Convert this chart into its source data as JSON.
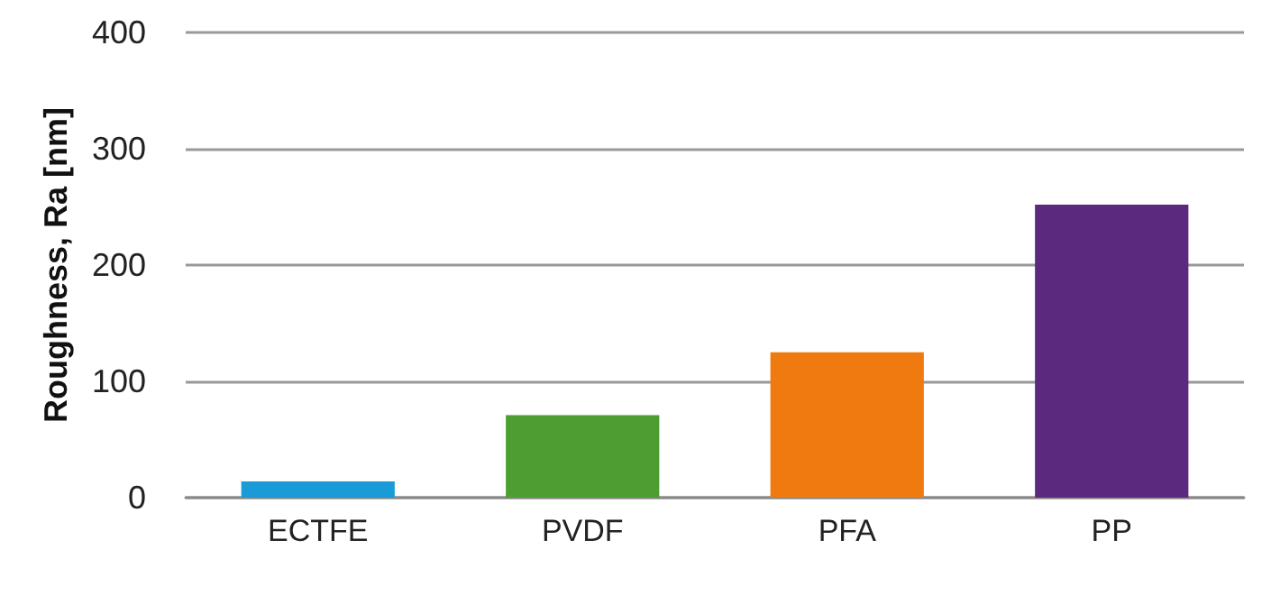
{
  "chart_data": {
    "type": "bar",
    "ylabel": "Roughness, Ra [nm]",
    "categories": [
      "ECTFE",
      "PVDF",
      "PFA",
      "PP"
    ],
    "values": [
      14,
      71,
      125,
      252
    ],
    "colors": [
      "#1a9bd8",
      "#4b9e2f",
      "#ef7b10",
      "#5b2a7e"
    ],
    "ylim": [
      0,
      400
    ],
    "yticks": [
      0,
      100,
      200,
      300,
      400
    ],
    "grid": "y"
  }
}
